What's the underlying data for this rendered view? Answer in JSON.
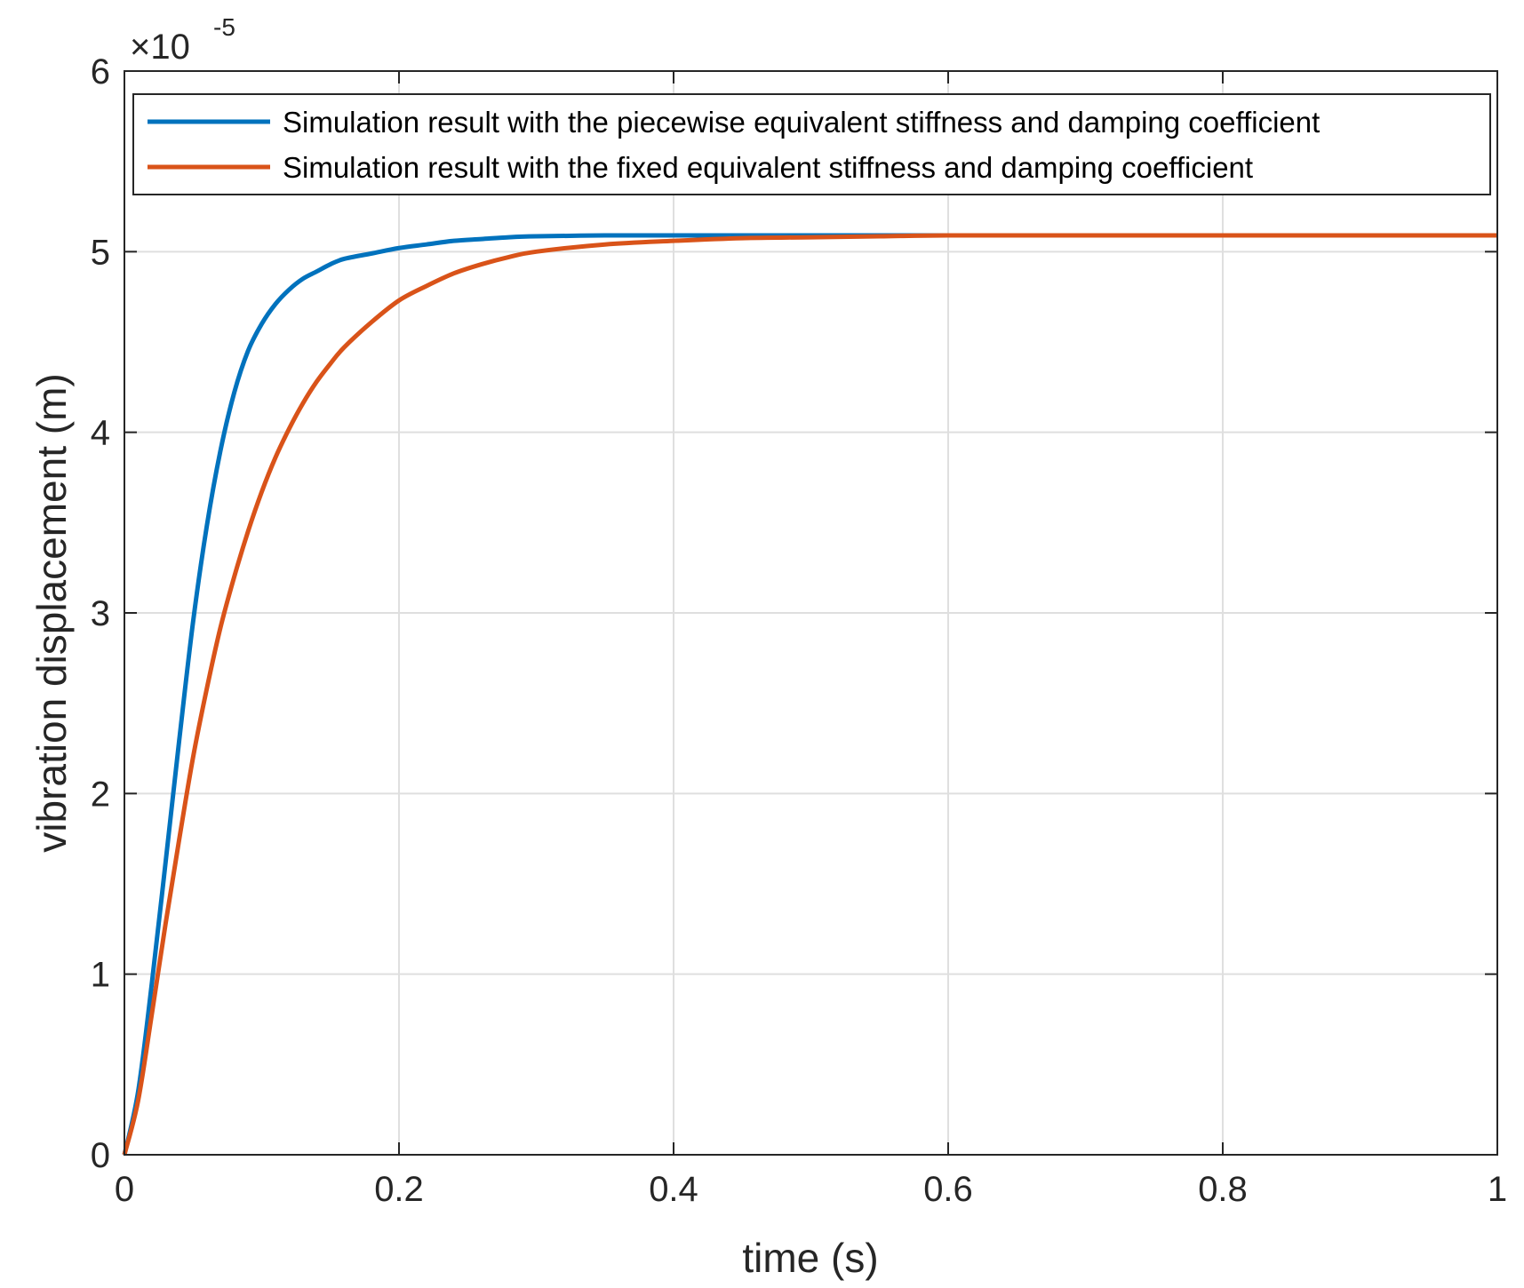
{
  "chart_data": {
    "type": "line",
    "xlabel": "time (s)",
    "ylabel": "vibration displacement (m)",
    "xlim": [
      0,
      1
    ],
    "ylim": [
      0,
      6e-05
    ],
    "x_ticks": [
      0,
      0.2,
      0.4,
      0.6,
      0.8,
      1
    ],
    "x_tick_labels": [
      "0",
      "0.2",
      "0.4",
      "0.6",
      "0.8",
      "1"
    ],
    "y_ticks": [
      0,
      1e-05,
      2e-05,
      3e-05,
      4e-05,
      5e-05,
      6e-05
    ],
    "y_tick_labels": [
      "0",
      "1",
      "2",
      "3",
      "4",
      "5",
      "6"
    ],
    "y_multiplier": {
      "base": "×10",
      "exponent": "-5"
    },
    "grid": true,
    "legend_position": "top",
    "series": [
      {
        "name": "Simulation result with the piecewise equivalent stiffness and damping coefficient",
        "color": "#0072BD",
        "x": [
          0,
          0.01,
          0.02,
          0.03,
          0.04,
          0.05,
          0.06,
          0.07,
          0.08,
          0.09,
          0.1,
          0.11,
          0.12,
          0.13,
          0.14,
          0.15,
          0.16,
          0.18,
          0.2,
          0.22,
          0.24,
          0.26,
          0.28,
          0.3,
          0.35,
          0.4,
          0.5,
          0.6,
          0.7,
          0.8,
          0.9,
          1.0
        ],
        "y": [
          0,
          3.5e-06,
          9.5e-06,
          1.62e-05,
          2.3e-05,
          2.95e-05,
          3.48e-05,
          3.9e-05,
          4.22e-05,
          4.45e-05,
          4.6e-05,
          4.71e-05,
          4.79e-05,
          4.85e-05,
          4.89e-05,
          4.93e-05,
          4.96e-05,
          4.99e-05,
          5.02e-05,
          5.04e-05,
          5.06e-05,
          5.07e-05,
          5.08e-05,
          5.085e-05,
          5.09e-05,
          5.09e-05,
          5.09e-05,
          5.09e-05,
          5.09e-05,
          5.09e-05,
          5.09e-05,
          5.09e-05
        ]
      },
      {
        "name": "Simulation result with the fixed equivalent stiffness and damping coefficient",
        "color": "#D95319",
        "x": [
          0,
          0.01,
          0.02,
          0.03,
          0.04,
          0.05,
          0.06,
          0.07,
          0.08,
          0.09,
          0.1,
          0.11,
          0.12,
          0.13,
          0.14,
          0.15,
          0.16,
          0.18,
          0.2,
          0.22,
          0.24,
          0.26,
          0.28,
          0.3,
          0.35,
          0.4,
          0.45,
          0.5,
          0.55,
          0.6,
          0.7,
          0.8,
          0.9,
          1.0
        ],
        "y": [
          0,
          3e-06,
          7.8e-06,
          1.28e-05,
          1.75e-05,
          2.2e-05,
          2.58e-05,
          2.92e-05,
          3.2e-05,
          3.45e-05,
          3.67e-05,
          3.86e-05,
          4.02e-05,
          4.16e-05,
          4.28e-05,
          4.38e-05,
          4.47e-05,
          4.61e-05,
          4.73e-05,
          4.81e-05,
          4.88e-05,
          4.93e-05,
          4.97e-05,
          5e-05,
          5.04e-05,
          5.06e-05,
          5.075e-05,
          5.08e-05,
          5.085e-05,
          5.09e-05,
          5.09e-05,
          5.09e-05,
          5.09e-05,
          5.09e-05
        ]
      }
    ]
  }
}
